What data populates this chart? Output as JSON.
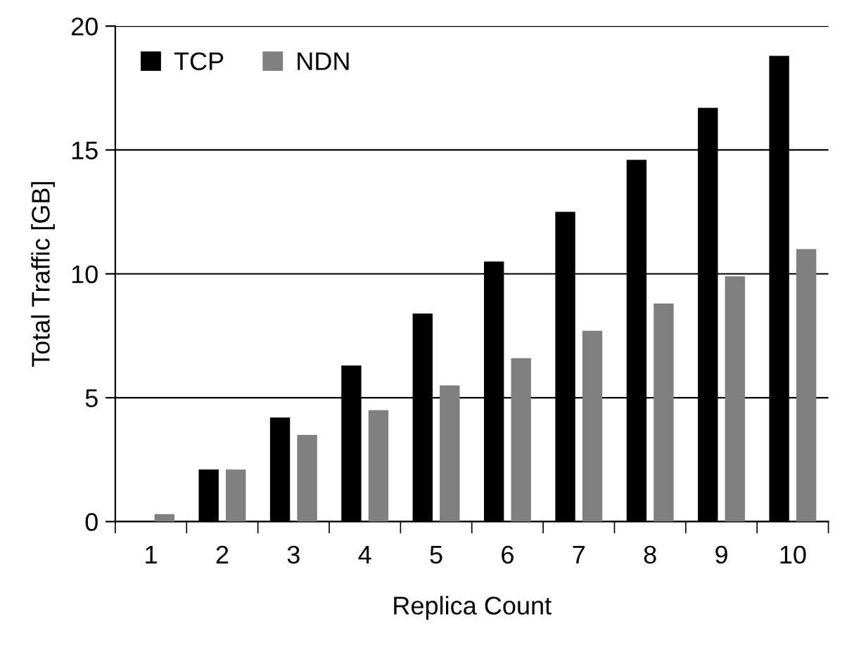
{
  "chart_data": {
    "type": "bar",
    "xlabel": "Replica Count",
    "ylabel": "Total Traffic [GB]",
    "categories": [
      "1",
      "2",
      "3",
      "4",
      "5",
      "6",
      "7",
      "8",
      "9",
      "10"
    ],
    "series": [
      {
        "name": "TCP",
        "color": "#000000",
        "values": [
          0,
          2.1,
          4.2,
          6.3,
          8.4,
          10.5,
          12.5,
          14.6,
          16.7,
          18.8
        ]
      },
      {
        "name": "NDN",
        "color": "#808080",
        "values": [
          0.3,
          2.1,
          3.5,
          4.5,
          5.5,
          6.6,
          7.7,
          8.8,
          9.9,
          11.0
        ]
      }
    ],
    "ylim": [
      0,
      20
    ],
    "yticks": [
      0,
      5,
      10,
      15,
      20
    ],
    "grid": "y",
    "legend": "top left"
  }
}
